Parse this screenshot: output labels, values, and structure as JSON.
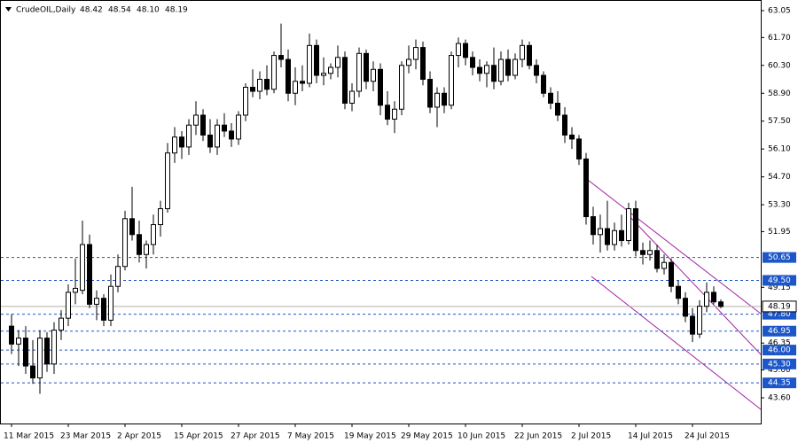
{
  "chart_data": {
    "type": "candlestick",
    "header": {
      "symbol": "CrudeOIL,Daily",
      "ohlc": [
        "48.42",
        "48.54",
        "48.10",
        "48.19"
      ]
    },
    "categories": [
      "11 Mar 2015",
      null,
      null,
      null,
      null,
      null,
      null,
      null,
      "23 Mar 2015",
      null,
      null,
      null,
      null,
      null,
      null,
      null,
      "2 Apr 2015",
      null,
      null,
      null,
      null,
      null,
      null,
      null,
      "15 Apr 2015",
      null,
      null,
      null,
      null,
      null,
      null,
      null,
      "27 Apr 2015",
      null,
      null,
      null,
      null,
      null,
      null,
      null,
      "7 May 2015",
      null,
      null,
      null,
      null,
      null,
      null,
      null,
      "19 May 2015",
      null,
      null,
      null,
      null,
      null,
      null,
      null,
      "29 May 2015",
      null,
      null,
      null,
      null,
      null,
      null,
      null,
      "10 Jun 2015",
      null,
      null,
      null,
      null,
      null,
      null,
      null,
      "22 Jun 2015",
      null,
      null,
      null,
      null,
      null,
      null,
      null,
      "2 Jul 2015",
      null,
      null,
      null,
      null,
      null,
      null,
      null,
      "14 Jul 2015",
      null,
      null,
      null,
      null,
      null,
      null,
      null,
      "24 Jul 2015",
      null,
      null,
      null,
      null
    ],
    "open": [
      47.2,
      46.3,
      46.6,
      45.2,
      44.6,
      46.6,
      45.3,
      47.0,
      47.6,
      48.9,
      49.0,
      51.3,
      48.3,
      48.6,
      47.5,
      49.2,
      50.2,
      52.6,
      51.8,
      50.8,
      51.3,
      52.3,
      53.1,
      55.9,
      56.7,
      56.2,
      57.3,
      57.8,
      56.8,
      56.2,
      57.3,
      57.0,
      56.6,
      57.8,
      59.2,
      59.0,
      59.6,
      59.1,
      60.8,
      60.6,
      58.9,
      59.5,
      59.4,
      61.3,
      59.8,
      59.9,
      60.2,
      60.7,
      58.4,
      59.0,
      60.9,
      59.5,
      60.1,
      58.3,
      57.6,
      58.1,
      60.3,
      60.6,
      61.2,
      59.6,
      58.2,
      58.9,
      58.3,
      60.8,
      61.4,
      60.7,
      60.2,
      59.9,
      60.3,
      59.5,
      60.6,
      59.8,
      60.6,
      61.3,
      60.3,
      59.8,
      58.9,
      58.4,
      57.8,
      56.8,
      56.6,
      55.6,
      52.7,
      51.8,
      52.1,
      51.3,
      52.0,
      51.5,
      53.1,
      51.0,
      50.8,
      51.0,
      50.1,
      50.4,
      49.2,
      48.6,
      47.7,
      46.8,
      48.2,
      48.9,
      48.42
    ],
    "high": [
      47.8,
      47.0,
      47.2,
      46.5,
      47.0,
      46.9,
      47.4,
      48.0,
      49.3,
      50.6,
      52.5,
      51.8,
      49.0,
      48.8,
      49.8,
      50.8,
      53.0,
      54.2,
      52.5,
      51.5,
      52.8,
      53.5,
      56.4,
      57.2,
      57.0,
      57.6,
      58.5,
      58.1,
      57.6,
      57.6,
      57.9,
      57.4,
      58.0,
      59.4,
      60.1,
      60.0,
      60.3,
      61.0,
      62.4,
      61.1,
      60.2,
      60.3,
      61.9,
      61.6,
      60.7,
      60.4,
      61.3,
      61.0,
      59.4,
      61.2,
      61.1,
      60.5,
      60.4,
      59.0,
      58.5,
      60.5,
      61.3,
      61.6,
      61.5,
      60.0,
      59.2,
      59.2,
      61.0,
      61.7,
      61.6,
      61.0,
      60.6,
      60.5,
      61.2,
      61.0,
      61.1,
      60.9,
      61.6,
      61.5,
      60.6,
      60.0,
      59.2,
      59.0,
      58.2,
      57.2,
      56.8,
      55.9,
      53.2,
      52.8,
      53.5,
      52.4,
      52.8,
      53.4,
      53.5,
      51.4,
      51.5,
      51.3,
      50.8,
      50.6,
      49.5,
      48.9,
      48.1,
      48.5,
      49.4,
      49.2,
      48.54
    ],
    "low": [
      45.8,
      45.2,
      44.8,
      44.3,
      43.8,
      44.9,
      44.8,
      46.5,
      47.2,
      48.3,
      48.8,
      48.1,
      47.5,
      47.2,
      47.2,
      48.9,
      50.0,
      51.5,
      50.4,
      50.1,
      50.8,
      51.7,
      52.9,
      55.4,
      55.6,
      55.8,
      56.8,
      56.5,
      55.9,
      55.8,
      56.7,
      56.2,
      56.3,
      57.5,
      58.7,
      58.6,
      58.8,
      58.9,
      60.2,
      58.5,
      58.3,
      59.0,
      59.2,
      59.4,
      59.3,
      59.6,
      59.7,
      58.1,
      58.0,
      58.7,
      59.1,
      59.0,
      57.8,
      57.3,
      56.9,
      57.8,
      59.9,
      60.1,
      59.3,
      57.9,
      57.2,
      57.9,
      58.1,
      60.2,
      60.3,
      59.8,
      59.5,
      59.2,
      59.1,
      59.3,
      59.5,
      59.6,
      60.2,
      60.1,
      59.4,
      58.7,
      58.1,
      57.5,
      56.4,
      56.1,
      55.3,
      52.3,
      51.3,
      50.9,
      51.0,
      51.0,
      51.2,
      51.3,
      50.7,
      50.3,
      50.5,
      49.9,
      49.8,
      48.9,
      48.3,
      47.4,
      46.4,
      46.6,
      47.9,
      48.3,
      48.1
    ],
    "close": [
      46.3,
      46.6,
      45.2,
      44.6,
      46.6,
      45.3,
      47.0,
      47.6,
      48.9,
      49.1,
      51.3,
      48.3,
      48.6,
      47.5,
      49.2,
      50.2,
      52.6,
      51.8,
      50.8,
      51.3,
      52.3,
      53.1,
      55.9,
      56.7,
      56.2,
      57.3,
      57.8,
      56.8,
      56.2,
      57.3,
      57.0,
      56.6,
      57.8,
      59.2,
      59.0,
      59.6,
      59.1,
      60.8,
      60.6,
      58.9,
      59.5,
      59.4,
      61.3,
      59.8,
      59.9,
      60.2,
      60.7,
      58.4,
      59.0,
      60.9,
      59.5,
      60.1,
      58.3,
      57.6,
      58.1,
      60.3,
      60.6,
      61.2,
      59.6,
      58.2,
      58.9,
      58.3,
      60.8,
      61.4,
      60.7,
      60.2,
      59.9,
      60.3,
      59.5,
      60.6,
      59.8,
      60.6,
      61.3,
      60.3,
      59.8,
      58.9,
      58.4,
      57.8,
      56.8,
      56.6,
      55.6,
      52.7,
      51.8,
      52.1,
      51.3,
      52.0,
      51.5,
      53.1,
      51.0,
      50.8,
      51.0,
      50.1,
      50.4,
      49.2,
      48.6,
      47.7,
      46.8,
      48.2,
      48.9,
      48.42,
      48.19
    ],
    "ylim": [
      42.31,
      63.54
    ],
    "yticks": [
      63.05,
      {
        "value": 61.7,
        "label": "61.70"
      },
      {
        "value": 60.3,
        "label": "60.30"
      },
      {
        "value": 58.9,
        "label": "58.90"
      },
      {
        "value": 57.5,
        "label": "57.50"
      },
      {
        "value": 56.1,
        "label": "56.10"
      },
      {
        "value": 54.7,
        "label": "54.70"
      },
      {
        "value": 53.3,
        "label": "53.30"
      },
      51.95,
      49.15,
      46.35,
      {
        "value": 45.0,
        "label": "45.00"
      },
      {
        "value": 43.6,
        "label": "43.60"
      }
    ],
    "levels": [
      50.65,
      {
        "value": 49.5,
        "label": "49.50"
      },
      {
        "value": 47.8,
        "label": "47.80"
      },
      46.95,
      {
        "value": 46.0,
        "label": "46.00"
      },
      {
        "value": 45.3,
        "label": "45.30"
      },
      44.35
    ],
    "last_price": 48.19,
    "level_color": "#1c56c8",
    "trend_color": "#a020a0"
  }
}
